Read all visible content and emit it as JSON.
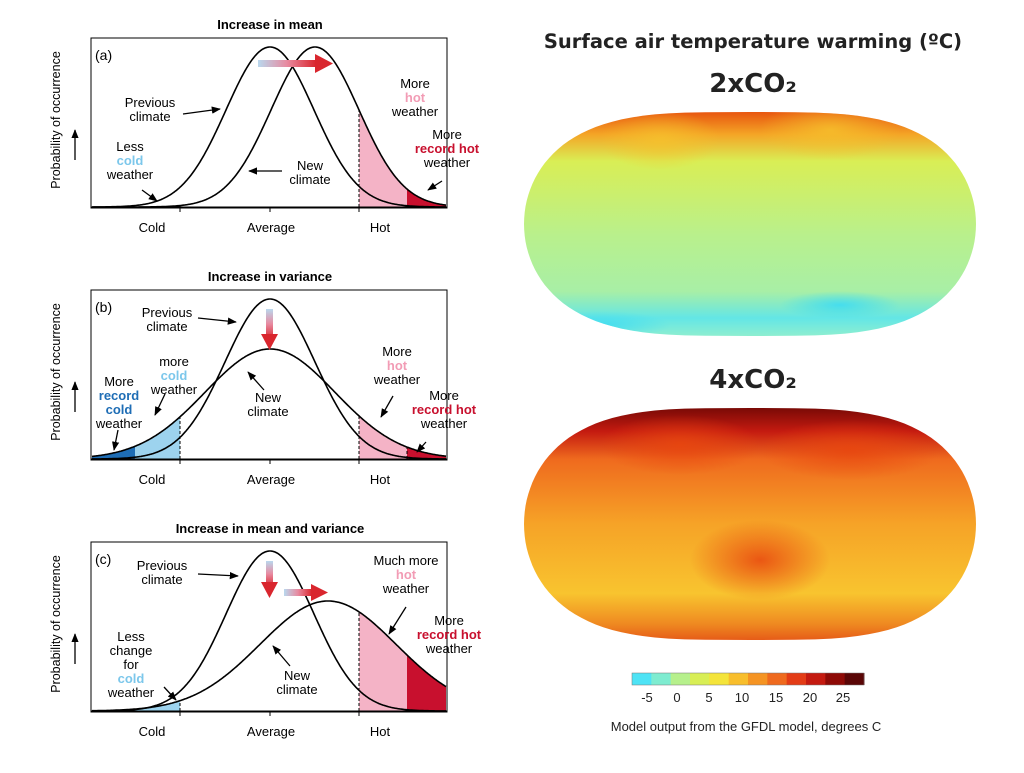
{
  "left": {
    "panels": [
      {
        "id": "a",
        "title": "Increase in mean",
        "tag": "(a)",
        "ylabel": "Probability of occurrence",
        "ticks": [
          "Cold",
          "Average",
          "Hot"
        ],
        "labels": {
          "prev": [
            "Previous",
            "climate"
          ],
          "new": [
            "New",
            "climate"
          ],
          "less_cold": [
            "Less",
            "cold",
            "weather"
          ],
          "more_hot": [
            "More",
            "hot",
            "weather"
          ],
          "more_record_hot": [
            "More",
            "record hot",
            "weather"
          ]
        }
      },
      {
        "id": "b",
        "title": "Increase in variance",
        "tag": "(b)",
        "ylabel": "Probability of occurrence",
        "ticks": [
          "Cold",
          "Average",
          "Hot"
        ],
        "labels": {
          "prev": [
            "Previous",
            "climate"
          ],
          "new": [
            "New",
            "climate"
          ],
          "more_record_cold": [
            "More",
            "record",
            "cold",
            "weather"
          ],
          "more_cold": [
            "more",
            "cold",
            "weather"
          ],
          "more_hot": [
            "More",
            "hot",
            "weather"
          ],
          "more_record_hot": [
            "More",
            "record hot",
            "weather"
          ]
        }
      },
      {
        "id": "c",
        "title": "Increase in mean and variance",
        "tag": "(c)",
        "ylabel": "Probability of occurrence",
        "ticks": [
          "Cold",
          "Average",
          "Hot"
        ],
        "labels": {
          "prev": [
            "Previous",
            "climate"
          ],
          "new": [
            "New",
            "climate"
          ],
          "less_change": [
            "Less",
            "change",
            "for",
            "cold",
            "weather"
          ],
          "much_more_hot": [
            "Much more",
            "hot",
            "weather"
          ],
          "more_record_hot": [
            "More",
            "record hot",
            "weather"
          ]
        }
      }
    ],
    "colors": {
      "cold_light": "#9dd3ee",
      "cold_dark": "#1e6db5",
      "hot_light": "#f4b3c6",
      "hot_dark": "#c8102e",
      "arrow_red": "#d9262e",
      "cold_text": "#7cc7eb",
      "hot_text": "#f29cb5",
      "record_text": "#c8102e",
      "record_cold_text": "#1e6db5"
    }
  },
  "right": {
    "title": "Surface air temperature warming (ºC)",
    "maps": [
      {
        "label": "2xCO₂",
        "palette": "mild"
      },
      {
        "label": "4xCO₂",
        "palette": "hot"
      }
    ],
    "colorbar": {
      "ticks": [
        "-5",
        "0",
        "5",
        "10",
        "15",
        "20",
        "25"
      ],
      "colors": [
        "#4ee3f5",
        "#7eecd0",
        "#b6f08c",
        "#d8ee55",
        "#f4e43a",
        "#f8be2c",
        "#f59423",
        "#ef6a1e",
        "#e33c16",
        "#c41a10",
        "#8e0a06",
        "#5a0606"
      ]
    },
    "caption": "Model output from the GFDL model, degrees C"
  }
}
